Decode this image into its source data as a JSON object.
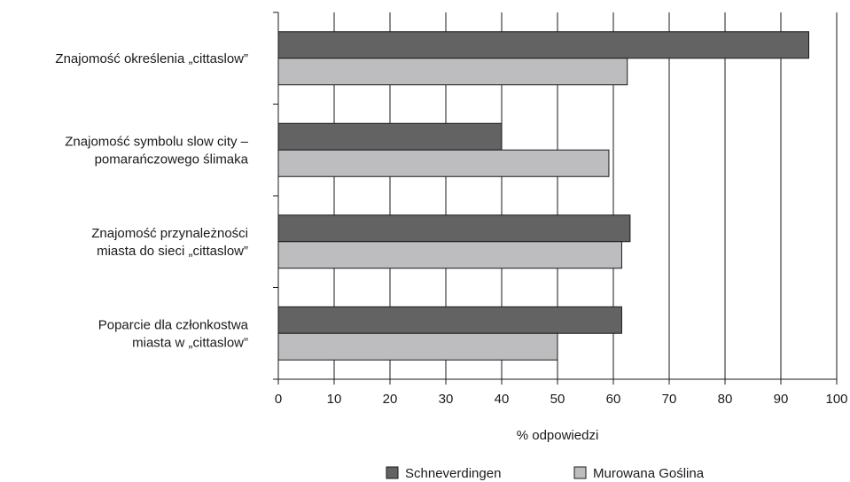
{
  "chart_data": {
    "type": "bar",
    "orientation": "horizontal",
    "categories": [
      [
        "Znajomość określenia „cittaslow”"
      ],
      [
        "Znajomość symbolu slow city –",
        "pomarańczowego ślimaka"
      ],
      [
        "Znajomość przynależności",
        "miasta do sieci „cittaslow”"
      ],
      [
        "Poparcie dla członkostwa",
        "miasta w „cittaslow”"
      ]
    ],
    "series": [
      {
        "name": "Schneverdingen",
        "values": [
          95,
          40,
          63,
          61.5
        ],
        "color": "#636363"
      },
      {
        "name": "Murowana Goślina",
        "values": [
          62.5,
          59.2,
          61.5,
          50
        ],
        "color": "#bdbdbf"
      }
    ],
    "xlabel": "% odpowiedzi",
    "xlim": [
      0,
      100
    ],
    "xticks": [
      "0",
      "10",
      "20",
      "30",
      "40",
      "50",
      "60",
      "70",
      "80",
      "90",
      "100"
    ],
    "grid": "vertical",
    "legend_position": "bottom-center"
  }
}
